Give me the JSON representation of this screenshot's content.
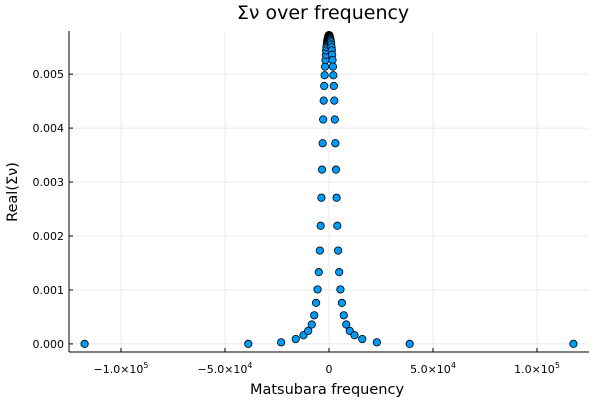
{
  "chart_data": {
    "type": "scatter",
    "title": "Σν over frequency",
    "xlabel": "Matsubara frequency",
    "ylabel": "Real(Σν)",
    "xlim": [
      -125000,
      125000
    ],
    "ylim": [
      -0.00015,
      0.0058
    ],
    "x_ticks": [
      {
        "value": -100000,
        "base": "−1.0×10",
        "exp": "5"
      },
      {
        "value": -50000,
        "base": "−5.0×10",
        "exp": "4"
      },
      {
        "value": 0,
        "base": "0",
        "exp": ""
      },
      {
        "value": 50000,
        "base": "5.0×10",
        "exp": "4"
      },
      {
        "value": 100000,
        "base": "1.0×10",
        "exp": "5"
      }
    ],
    "y_ticks": [
      {
        "value": 0.0,
        "label": "0.000"
      },
      {
        "value": 0.001,
        "label": "0.001"
      },
      {
        "value": 0.002,
        "label": "0.002"
      },
      {
        "value": 0.003,
        "label": "0.003"
      },
      {
        "value": 0.004,
        "label": "0.004"
      },
      {
        "value": 0.005,
        "label": "0.005"
      }
    ],
    "grid": true,
    "legend": "none",
    "marker_color": "#009af9",
    "marker_edge_color": "#000000",
    "series": [
      {
        "x": [
          -117500,
          -38800,
          -23000,
          -16000,
          -12300,
          -10000,
          -8300,
          -7100,
          -6200,
          -5500,
          -4900,
          -4400,
          -4000,
          -3650,
          -3350,
          -3050,
          -2800,
          -2550,
          -2300,
          -2100,
          -1900,
          -1700,
          -1520,
          -1350,
          -1200,
          -1050,
          -920,
          -800,
          -690,
          -590,
          -500,
          -420,
          -350,
          -290,
          -240,
          -200,
          -165,
          -135,
          -110,
          -90,
          -70,
          -50,
          -32,
          -16,
          0,
          0,
          16,
          32,
          50,
          70,
          90,
          110,
          135,
          165,
          200,
          240,
          290,
          350,
          420,
          500,
          590,
          690,
          800,
          920,
          1050,
          1200,
          1350,
          1520,
          1700,
          1900,
          2100,
          2300,
          2550,
          2800,
          3050,
          3350,
          3650,
          4000,
          4400,
          4900,
          5500,
          6200,
          7100,
          8300,
          10000,
          12300,
          16000,
          23000,
          38800,
          117500
        ],
        "y": [
          0.0,
          0.0,
          3e-05,
          9e-05,
          0.00016,
          0.00024,
          0.00036,
          0.00053,
          0.00076,
          0.00101,
          0.00133,
          0.00173,
          0.00219,
          0.00271,
          0.00323,
          0.00372,
          0.00416,
          0.00451,
          0.00478,
          0.00498,
          0.00514,
          0.00526,
          0.00536,
          0.00544,
          0.0055,
          0.00555,
          0.00559,
          0.00562,
          0.00564,
          0.00566,
          0.00567,
          0.00568,
          0.00569,
          0.0057,
          0.0057,
          0.00571,
          0.00571,
          0.00571,
          0.00571,
          0.00572,
          0.00572,
          0.00572,
          0.00572,
          0.00572,
          0.00572,
          0.00572,
          0.00572,
          0.00572,
          0.00572,
          0.00572,
          0.00572,
          0.00571,
          0.00571,
          0.00571,
          0.00571,
          0.0057,
          0.0057,
          0.00569,
          0.00568,
          0.00567,
          0.00566,
          0.00564,
          0.00562,
          0.00559,
          0.00555,
          0.0055,
          0.00544,
          0.00536,
          0.00526,
          0.00514,
          0.00498,
          0.00478,
          0.00451,
          0.00416,
          0.00372,
          0.00323,
          0.00271,
          0.00219,
          0.00173,
          0.00133,
          0.00101,
          0.00076,
          0.00053,
          0.00036,
          0.00024,
          0.00016,
          9e-05,
          3e-05,
          0.0,
          0.0
        ]
      }
    ]
  }
}
